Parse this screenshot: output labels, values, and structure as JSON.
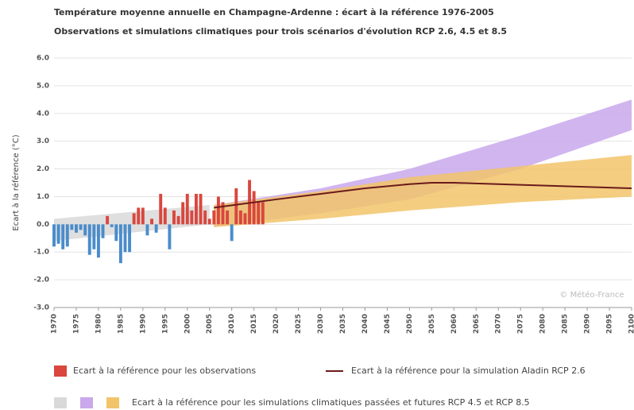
{
  "chart_data": {
    "type": "bar",
    "title": "Température moyenne annuelle en Champagne-Ardenne : écart à la référence 1976-2005",
    "subtitle": "Observations et simulations climatiques pour trois scénarios d'évolution RCP 2.6, 4.5 et 8.5",
    "ylabel": "Ecart à la référence (°C)",
    "watermark": "© Météo-France",
    "grid": true,
    "xlim": [
      1970,
      2100
    ],
    "xticks": [
      1970,
      1975,
      1980,
      1985,
      1990,
      1995,
      2000,
      2005,
      2010,
      2015,
      2020,
      2025,
      2030,
      2035,
      2040,
      2045,
      2050,
      2055,
      2060,
      2065,
      2070,
      2075,
      2080,
      2085,
      2090,
      2095,
      2100
    ],
    "ylim": [
      -3,
      6
    ],
    "yticks": [
      {
        "value": -3,
        "label": "-3.0"
      },
      {
        "value": -2,
        "label": "-2.0"
      },
      {
        "value": -1,
        "label": "-1.0"
      },
      {
        "value": 0,
        "label": "0.0"
      },
      {
        "value": 1,
        "label": "1.0"
      },
      {
        "value": 2,
        "label": "2.0"
      },
      {
        "value": 3,
        "label": "3.0"
      },
      {
        "value": 4,
        "label": "4.0"
      },
      {
        "value": 5,
        "label": "5.0"
      },
      {
        "value": 6,
        "label": "6.0"
      }
    ],
    "bars": {
      "name": "Ecart à la référence pour les observations",
      "positive_color": "#d9473f",
      "negative_color": "#4a8ccb",
      "x": [
        1970,
        1971,
        1972,
        1973,
        1974,
        1975,
        1976,
        1977,
        1978,
        1979,
        1980,
        1981,
        1982,
        1983,
        1984,
        1985,
        1986,
        1987,
        1988,
        1989,
        1990,
        1991,
        1992,
        1993,
        1994,
        1995,
        1996,
        1997,
        1998,
        1999,
        2000,
        2001,
        2002,
        2003,
        2004,
        2005,
        2006,
        2007,
        2008,
        2009,
        2010,
        2011,
        2012,
        2013,
        2014,
        2015,
        2016,
        2017
      ],
      "values": [
        -0.8,
        -0.7,
        -0.9,
        -0.8,
        -0.2,
        -0.3,
        -0.2,
        -0.4,
        -1.1,
        -0.9,
        -1.2,
        -0.5,
        0.3,
        -0.1,
        -0.6,
        -1.4,
        -1.0,
        -1.0,
        0.4,
        0.6,
        0.6,
        -0.4,
        0.2,
        -0.3,
        1.1,
        0.6,
        -0.9,
        0.5,
        0.3,
        0.8,
        1.1,
        0.5,
        1.1,
        1.1,
        0.5,
        0.2,
        0.5,
        1.0,
        0.8,
        0.5,
        -0.6,
        1.3,
        0.5,
        0.4,
        1.6,
        1.2,
        0.8,
        0.8
      ]
    },
    "line": {
      "name": "Ecart à la référence pour la simulation Aladin RCP 2.6",
      "color": "#6b1a1a",
      "x": [
        2006,
        2020,
        2030,
        2040,
        2050,
        2055,
        2060,
        2070,
        2080,
        2090,
        2100
      ],
      "values": [
        0.6,
        0.9,
        1.1,
        1.3,
        1.45,
        1.5,
        1.5,
        1.45,
        1.4,
        1.35,
        1.3
      ]
    },
    "bands_legend": "Ecart à la référence pour les simulations climatiques passées et futures RCP 4.5 et RCP 8.5",
    "bands": [
      {
        "color": "#d9d9d9",
        "x": [
          1970,
          2005
        ],
        "lower": [
          -0.6,
          0.0
        ],
        "upper": [
          0.2,
          0.7
        ]
      },
      {
        "color": "#c9a8ec",
        "x": [
          2006,
          2030,
          2050,
          2075,
          2100
        ],
        "lower": [
          -0.1,
          0.4,
          0.9,
          2.0,
          3.4
        ],
        "upper": [
          0.7,
          1.3,
          2.0,
          3.2,
          4.5
        ]
      },
      {
        "color": "#f2c46a",
        "x": [
          2006,
          2030,
          2050,
          2075,
          2100
        ],
        "lower": [
          -0.1,
          0.2,
          0.5,
          0.8,
          1.0
        ],
        "upper": [
          0.7,
          1.2,
          1.7,
          2.1,
          2.5
        ]
      }
    ]
  }
}
